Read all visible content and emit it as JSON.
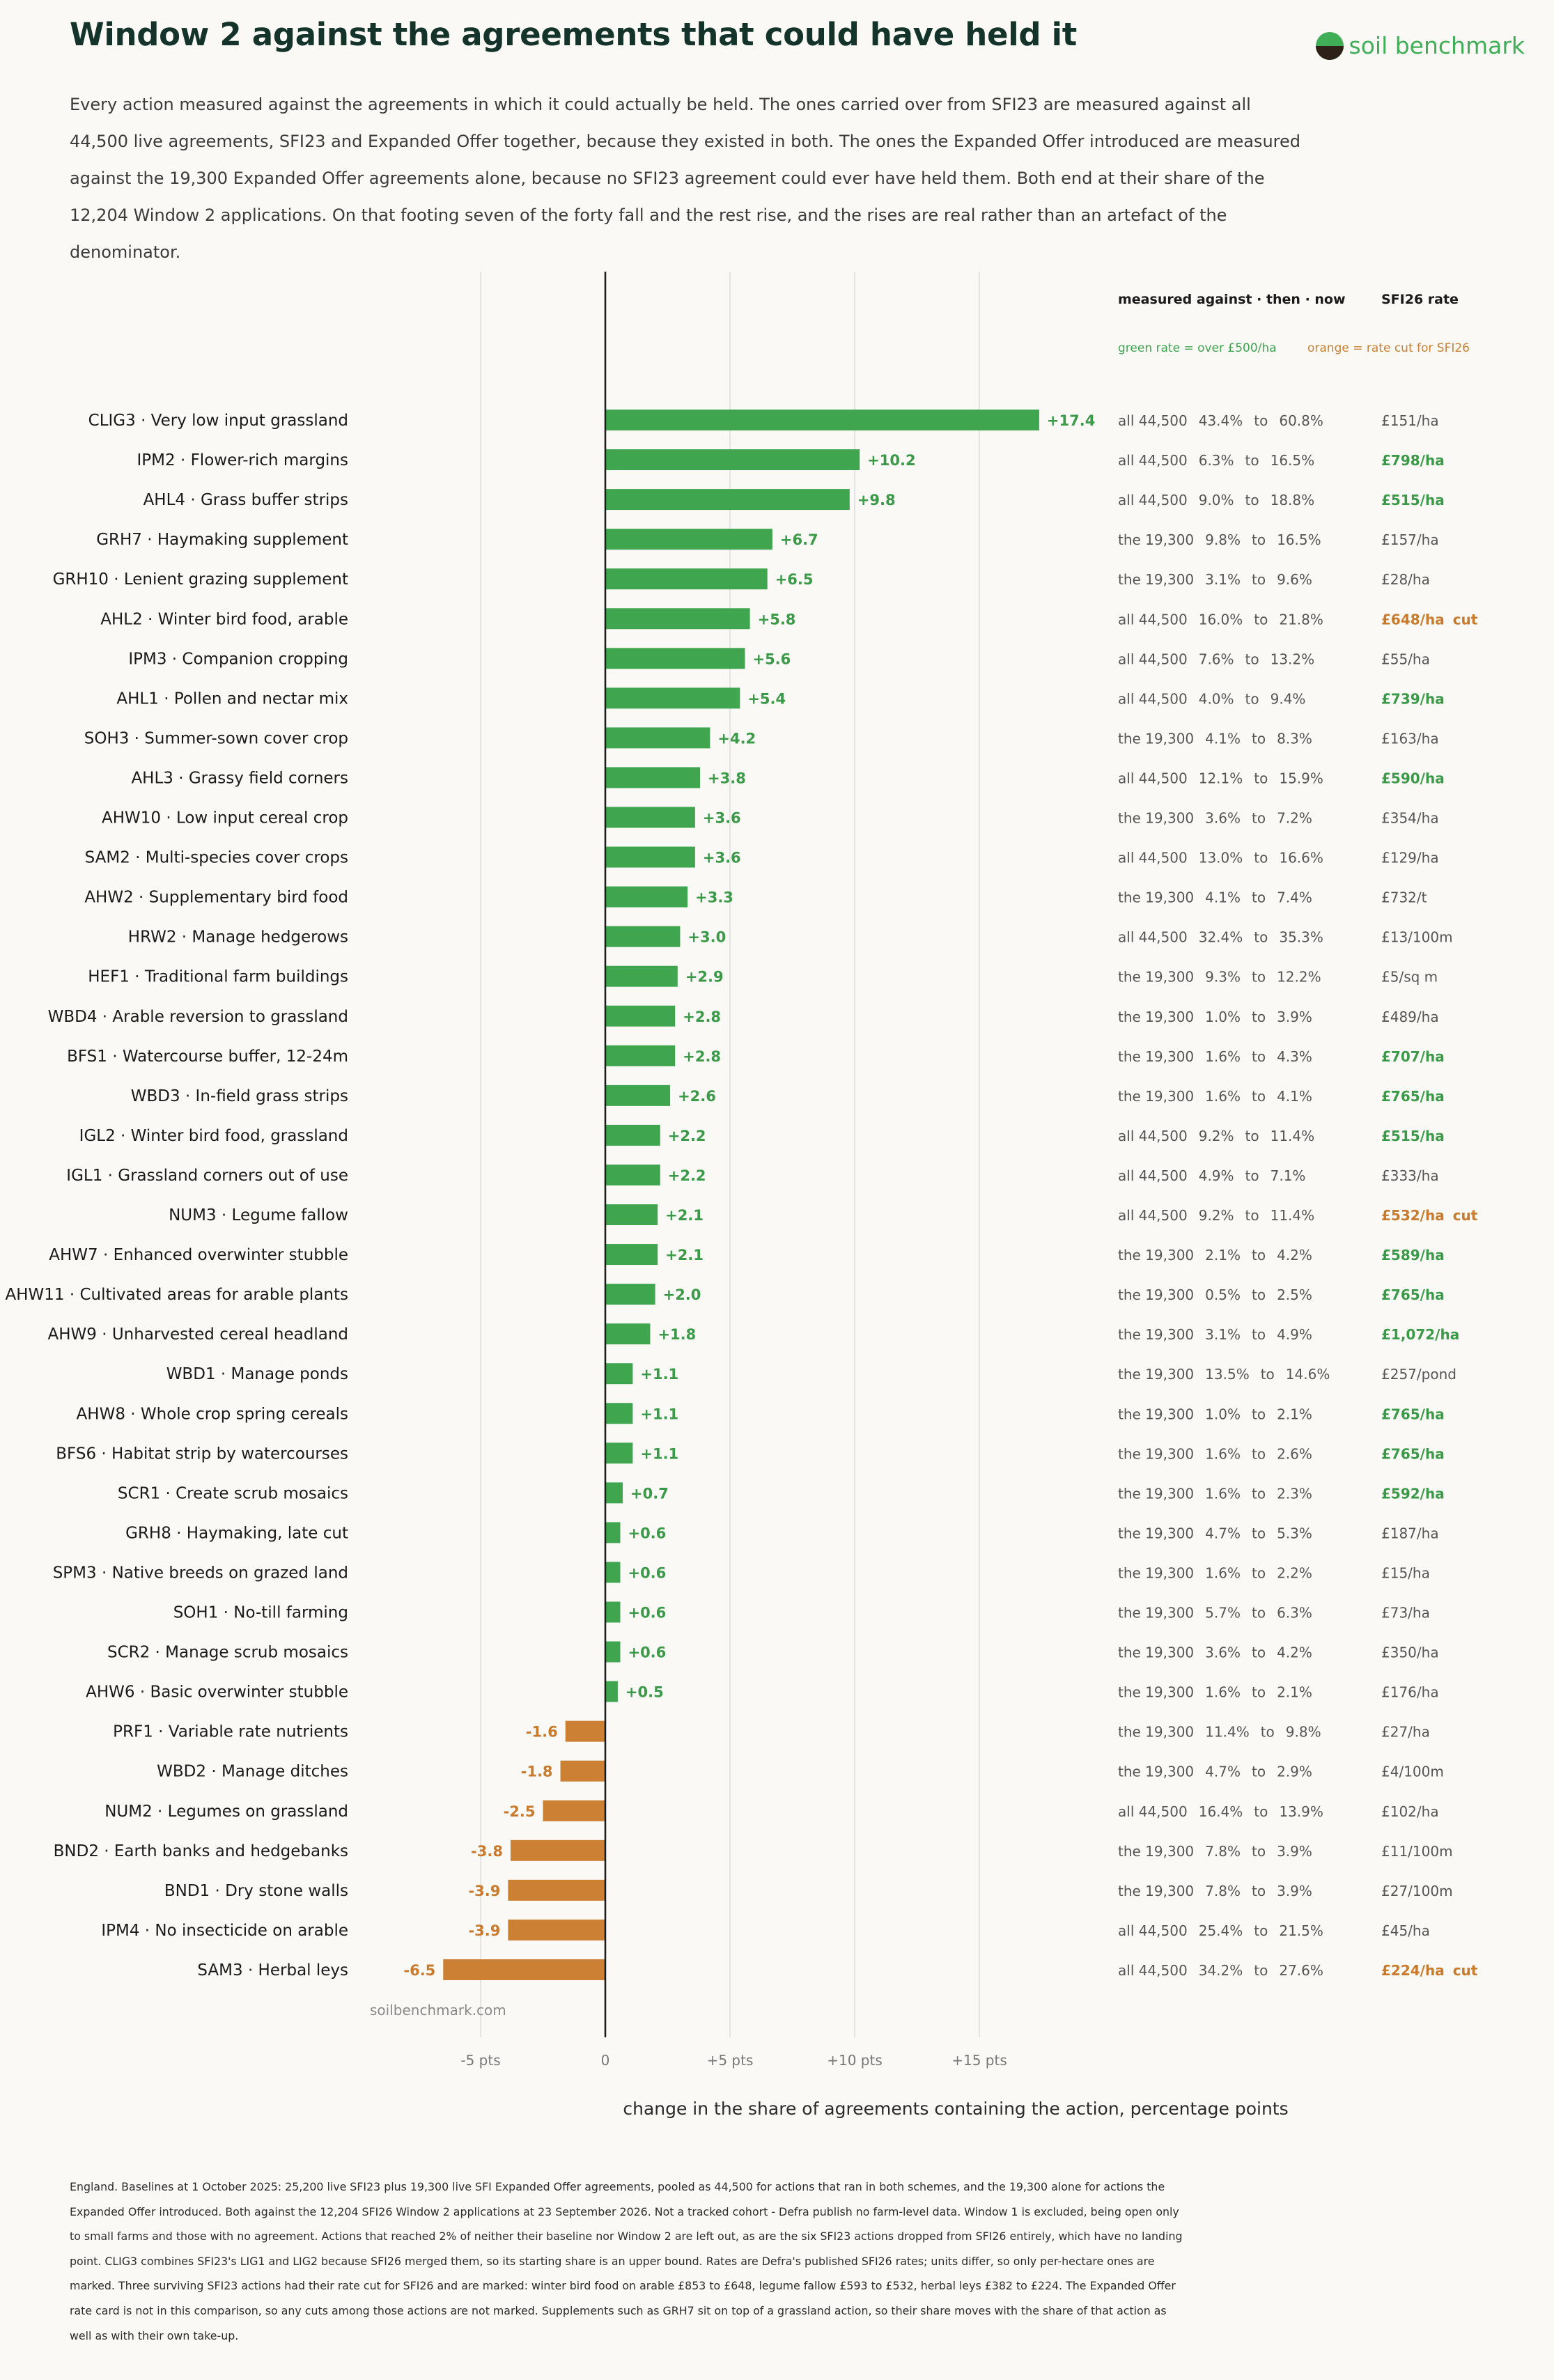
{
  "header": {
    "title": "Window 2 against the agreements that could have held it",
    "subtitle": "Every action measured against the agreements in which it could actually be held. The ones carried over from SFI23 are measured against all 44,500 live agreements, SFI23 and Expanded Offer together, because they existed in both. The ones the Expanded Offer introduced are measured against the 19,300 Expanded Offer agreements alone, because no SFI23 agreement could ever have held them. Both end at their share of the 12,204 Window 2 applications. On that footing seven of the forty fall and the rest rise, and the rises are real rather than an artefact of the denominator.",
    "logo_text": "soil benchmark"
  },
  "legend": {
    "col1_header": "measured against · then · now",
    "col2_header": "SFI26 rate",
    "green_note": "green rate = over £500/ha",
    "orange_note": "orange = rate cut for SFI26"
  },
  "colors": {
    "positive": "#3fa64f",
    "negative": "#cc8033",
    "rate_green": "#3a9a48",
    "rate_orange": "#c97a2c",
    "axis": "#1a1a1a",
    "grid": "#dddddd"
  },
  "watermark": "soilbenchmark.com",
  "to_word": "to",
  "cut_word": "cut",
  "footnote": "England. Baselines at 1 October 2025: 25,200 live SFI23 plus 19,300 live SFI Expanded Offer agreements, pooled as 44,500 for actions that ran in both schemes, and the 19,300 alone for actions the Expanded Offer introduced. Both against the 12,204 SFI26 Window 2 applications at 23 September 2026. Not a tracked cohort - Defra publish no farm-level data. Window 1 is excluded, being open only to small farms and those with no agreement. Actions that reached 2% of neither their baseline nor Window 2 are left out, as are the six SFI23 actions dropped from SFI26 entirely, which have no landing point. CLIG3 combines SFI23's LIG1 and LIG2 because SFI26 merged them, so its starting share is an upper bound. Rates are Defra's published SFI26 rates; units differ, so only per-hectare ones are marked. Three surviving SFI23 actions had their rate cut for SFI26 and are marked: winter bird food on arable £853 to £648, legume fallow £593 to £532, herbal leys £382 to £224. The Expanded Offer rate card is not in this comparison, so any cuts among those actions are not marked. Supplements such as GRH7 sit on top of a grassland action, so their share moves with the share of that action as well as with their own take-up.",
  "chart_data": {
    "type": "bar",
    "orientation": "horizontal",
    "xlabel": "change in the share of agreements containing the action, percentage points",
    "xlim": [
      -7,
      17.4
    ],
    "xticks": [
      -5,
      0,
      5,
      10,
      15
    ],
    "xtick_labels": [
      "-5 pts",
      "0",
      "+5 pts",
      "+10 pts",
      "+15 pts"
    ],
    "grid": "vertical",
    "rows": [
      {
        "label": "CLIG3 · Very low input grassland",
        "change": 17.4,
        "value_label": "+17.4",
        "base": "all 44,500",
        "then": "43.4%",
        "now": "60.8%",
        "rate": "£151/ha",
        "rate_style": "plain"
      },
      {
        "label": "IPM2 · Flower-rich margins",
        "change": 10.2,
        "value_label": "+10.2",
        "base": "all 44,500",
        "then": "6.3%",
        "now": "16.5%",
        "rate": "£798/ha",
        "rate_style": "green"
      },
      {
        "label": "AHL4 · Grass buffer strips",
        "change": 9.8,
        "value_label": "+9.8",
        "base": "all 44,500",
        "then": "9.0%",
        "now": "18.8%",
        "rate": "£515/ha",
        "rate_style": "green"
      },
      {
        "label": "GRH7 · Haymaking supplement",
        "change": 6.7,
        "value_label": "+6.7",
        "base": "the 19,300",
        "then": "9.8%",
        "now": "16.5%",
        "rate": "£157/ha",
        "rate_style": "plain"
      },
      {
        "label": "GRH10 · Lenient grazing supplement",
        "change": 6.5,
        "value_label": "+6.5",
        "base": "the 19,300",
        "then": "3.1%",
        "now": "9.6%",
        "rate": "£28/ha",
        "rate_style": "plain"
      },
      {
        "label": "AHL2 · Winter bird food, arable",
        "change": 5.8,
        "value_label": "+5.8",
        "base": "all 44,500",
        "then": "16.0%",
        "now": "21.8%",
        "rate": "£648/ha",
        "rate_style": "cut"
      },
      {
        "label": "IPM3 · Companion cropping",
        "change": 5.6,
        "value_label": "+5.6",
        "base": "all 44,500",
        "then": "7.6%",
        "now": "13.2%",
        "rate": "£55/ha",
        "rate_style": "plain"
      },
      {
        "label": "AHL1 · Pollen and nectar mix",
        "change": 5.4,
        "value_label": "+5.4",
        "base": "all 44,500",
        "then": "4.0%",
        "now": "9.4%",
        "rate": "£739/ha",
        "rate_style": "green"
      },
      {
        "label": "SOH3 · Summer-sown cover crop",
        "change": 4.2,
        "value_label": "+4.2",
        "base": "the 19,300",
        "then": "4.1%",
        "now": "8.3%",
        "rate": "£163/ha",
        "rate_style": "plain"
      },
      {
        "label": "AHL3 · Grassy field corners",
        "change": 3.8,
        "value_label": "+3.8",
        "base": "all 44,500",
        "then": "12.1%",
        "now": "15.9%",
        "rate": "£590/ha",
        "rate_style": "green"
      },
      {
        "label": "AHW10 · Low input cereal crop",
        "change": 3.6,
        "value_label": "+3.6",
        "base": "the 19,300",
        "then": "3.6%",
        "now": "7.2%",
        "rate": "£354/ha",
        "rate_style": "plain"
      },
      {
        "label": "SAM2 · Multi-species cover crops",
        "change": 3.6,
        "value_label": "+3.6",
        "base": "all 44,500",
        "then": "13.0%",
        "now": "16.6%",
        "rate": "£129/ha",
        "rate_style": "plain"
      },
      {
        "label": "AHW2 · Supplementary bird food",
        "change": 3.3,
        "value_label": "+3.3",
        "base": "the 19,300",
        "then": "4.1%",
        "now": "7.4%",
        "rate": "£732/t",
        "rate_style": "plain"
      },
      {
        "label": "HRW2 · Manage hedgerows",
        "change": 3.0,
        "value_label": "+3.0",
        "base": "all 44,500",
        "then": "32.4%",
        "now": "35.3%",
        "rate": "£13/100m",
        "rate_style": "plain"
      },
      {
        "label": "HEF1 · Traditional farm buildings",
        "change": 2.9,
        "value_label": "+2.9",
        "base": "the 19,300",
        "then": "9.3%",
        "now": "12.2%",
        "rate": "£5/sq m",
        "rate_style": "plain"
      },
      {
        "label": "WBD4 · Arable reversion to grassland",
        "change": 2.8,
        "value_label": "+2.8",
        "base": "the 19,300",
        "then": "1.0%",
        "now": "3.9%",
        "rate": "£489/ha",
        "rate_style": "plain"
      },
      {
        "label": "BFS1 · Watercourse buffer, 12-24m",
        "change": 2.8,
        "value_label": "+2.8",
        "base": "the 19,300",
        "then": "1.6%",
        "now": "4.3%",
        "rate": "£707/ha",
        "rate_style": "green"
      },
      {
        "label": "WBD3 · In-field grass strips",
        "change": 2.6,
        "value_label": "+2.6",
        "base": "the 19,300",
        "then": "1.6%",
        "now": "4.1%",
        "rate": "£765/ha",
        "rate_style": "green"
      },
      {
        "label": "IGL2 · Winter bird food, grassland",
        "change": 2.2,
        "value_label": "+2.2",
        "base": "all 44,500",
        "then": "9.2%",
        "now": "11.4%",
        "rate": "£515/ha",
        "rate_style": "green"
      },
      {
        "label": "IGL1 · Grassland corners out of use",
        "change": 2.2,
        "value_label": "+2.2",
        "base": "all 44,500",
        "then": "4.9%",
        "now": "7.1%",
        "rate": "£333/ha",
        "rate_style": "plain"
      },
      {
        "label": "NUM3 · Legume fallow",
        "change": 2.1,
        "value_label": "+2.1",
        "base": "all 44,500",
        "then": "9.2%",
        "now": "11.4%",
        "rate": "£532/ha",
        "rate_style": "cut"
      },
      {
        "label": "AHW7 · Enhanced overwinter stubble",
        "change": 2.1,
        "value_label": "+2.1",
        "base": "the 19,300",
        "then": "2.1%",
        "now": "4.2%",
        "rate": "£589/ha",
        "rate_style": "green"
      },
      {
        "label": "AHW11 · Cultivated areas for arable plants",
        "change": 2.0,
        "value_label": "+2.0",
        "base": "the 19,300",
        "then": "0.5%",
        "now": "2.5%",
        "rate": "£765/ha",
        "rate_style": "green"
      },
      {
        "label": "AHW9 · Unharvested cereal headland",
        "change": 1.8,
        "value_label": "+1.8",
        "base": "the 19,300",
        "then": "3.1%",
        "now": "4.9%",
        "rate": "£1,072/ha",
        "rate_style": "green"
      },
      {
        "label": "WBD1 · Manage ponds",
        "change": 1.1,
        "value_label": "+1.1",
        "base": "the 19,300",
        "then": "13.5%",
        "now": "14.6%",
        "rate": "£257/pond",
        "rate_style": "plain"
      },
      {
        "label": "AHW8 · Whole crop spring cereals",
        "change": 1.1,
        "value_label": "+1.1",
        "base": "the 19,300",
        "then": "1.0%",
        "now": "2.1%",
        "rate": "£765/ha",
        "rate_style": "green"
      },
      {
        "label": "BFS6 · Habitat strip by watercourses",
        "change": 1.1,
        "value_label": "+1.1",
        "base": "the 19,300",
        "then": "1.6%",
        "now": "2.6%",
        "rate": "£765/ha",
        "rate_style": "green"
      },
      {
        "label": "SCR1 · Create scrub mosaics",
        "change": 0.7,
        "value_label": "+0.7",
        "base": "the 19,300",
        "then": "1.6%",
        "now": "2.3%",
        "rate": "£592/ha",
        "rate_style": "green"
      },
      {
        "label": "GRH8 · Haymaking, late cut",
        "change": 0.6,
        "value_label": "+0.6",
        "base": "the 19,300",
        "then": "4.7%",
        "now": "5.3%",
        "rate": "£187/ha",
        "rate_style": "plain"
      },
      {
        "label": "SPM3 · Native breeds on grazed land",
        "change": 0.6,
        "value_label": "+0.6",
        "base": "the 19,300",
        "then": "1.6%",
        "now": "2.2%",
        "rate": "£15/ha",
        "rate_style": "plain"
      },
      {
        "label": "SOH1 · No-till farming",
        "change": 0.6,
        "value_label": "+0.6",
        "base": "the 19,300",
        "then": "5.7%",
        "now": "6.3%",
        "rate": "£73/ha",
        "rate_style": "plain"
      },
      {
        "label": "SCR2 · Manage scrub mosaics",
        "change": 0.6,
        "value_label": "+0.6",
        "base": "the 19,300",
        "then": "3.6%",
        "now": "4.2%",
        "rate": "£350/ha",
        "rate_style": "plain"
      },
      {
        "label": "AHW6 · Basic overwinter stubble",
        "change": 0.5,
        "value_label": "+0.5",
        "base": "the 19,300",
        "then": "1.6%",
        "now": "2.1%",
        "rate": "£176/ha",
        "rate_style": "plain"
      },
      {
        "label": "PRF1 · Variable rate nutrients",
        "change": -1.6,
        "value_label": "-1.6",
        "base": "the 19,300",
        "then": "11.4%",
        "now": "9.8%",
        "rate": "£27/ha",
        "rate_style": "plain"
      },
      {
        "label": "WBD2 · Manage ditches",
        "change": -1.8,
        "value_label": "-1.8",
        "base": "the 19,300",
        "then": "4.7%",
        "now": "2.9%",
        "rate": "£4/100m",
        "rate_style": "plain"
      },
      {
        "label": "NUM2 · Legumes on grassland",
        "change": -2.5,
        "value_label": "-2.5",
        "base": "all 44,500",
        "then": "16.4%",
        "now": "13.9%",
        "rate": "£102/ha",
        "rate_style": "plain"
      },
      {
        "label": "BND2 · Earth banks and hedgebanks",
        "change": -3.8,
        "value_label": "-3.8",
        "base": "the 19,300",
        "then": "7.8%",
        "now": "3.9%",
        "rate": "£11/100m",
        "rate_style": "plain"
      },
      {
        "label": "BND1 · Dry stone walls",
        "change": -3.9,
        "value_label": "-3.9",
        "base": "the 19,300",
        "then": "7.8%",
        "now": "3.9%",
        "rate": "£27/100m",
        "rate_style": "plain"
      },
      {
        "label": "IPM4 · No insecticide on arable",
        "change": -3.9,
        "value_label": "-3.9",
        "base": "all 44,500",
        "then": "25.4%",
        "now": "21.5%",
        "rate": "£45/ha",
        "rate_style": "plain"
      },
      {
        "label": "SAM3 · Herbal leys",
        "change": -6.5,
        "value_label": "-6.5",
        "base": "all 44,500",
        "then": "34.2%",
        "now": "27.6%",
        "rate": "£224/ha",
        "rate_style": "cut"
      }
    ]
  }
}
